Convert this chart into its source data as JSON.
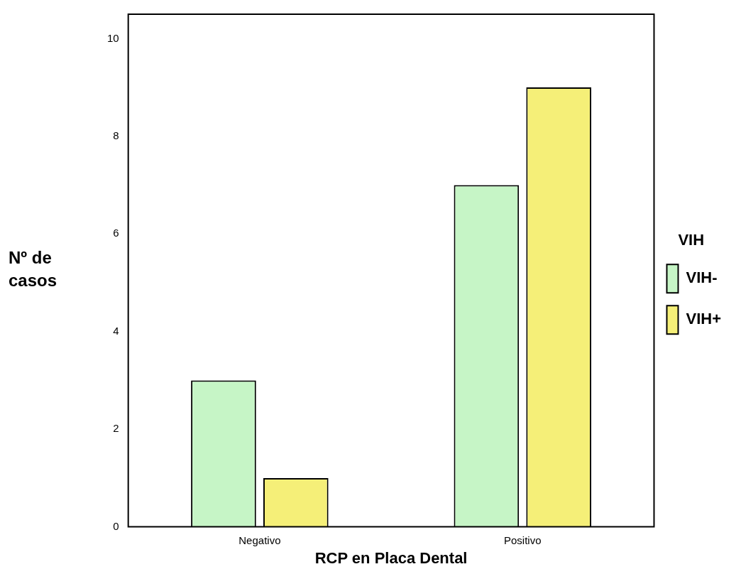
{
  "chart_data": {
    "type": "bar",
    "xlabel": "RCP en Placa Dental",
    "ylabel": "Nº de casos",
    "legend_title": "VIH",
    "categories": [
      "Negativo",
      "Positivo"
    ],
    "series": [
      {
        "name": "VIH-",
        "color": "#c6f5c6",
        "values": [
          3,
          7
        ]
      },
      {
        "name": "VIH+",
        "color": "#f5ef78",
        "values": [
          1,
          9
        ]
      }
    ],
    "ylim": [
      0,
      10.5
    ],
    "yticks": [
      0,
      2,
      4,
      6,
      8,
      10
    ],
    "grid": false,
    "legend": "right"
  }
}
